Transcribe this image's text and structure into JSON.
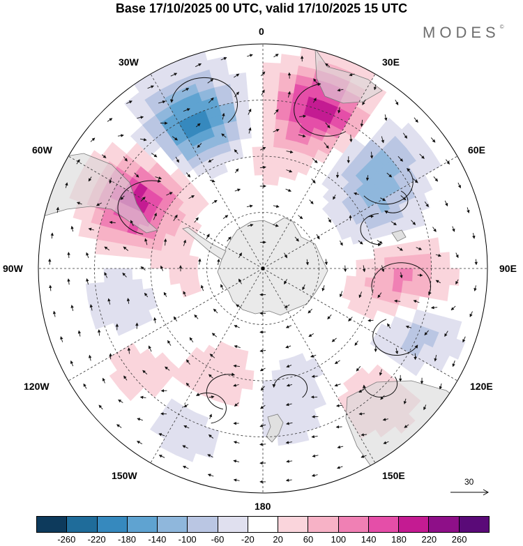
{
  "title": "Base 17/10/2025 00 UTC, valid 17/10/2025 15 UTC",
  "brand": {
    "name": "MODES",
    "mark": "©"
  },
  "longitude_labels": {
    "lon_0": "0",
    "lon_30e": "30E",
    "lon_60e": "60E",
    "lon_90e": "90E",
    "lon_120e": "120E",
    "lon_150e": "150E",
    "lon_180": "180",
    "lon_150w": "150W",
    "lon_120w": "120W",
    "lon_90w": "90W",
    "lon_60w": "60W",
    "lon_30w": "30W"
  },
  "vector_scale": {
    "label": "30"
  },
  "colorbar": {
    "colors": [
      "#0d3a5c",
      "#1f6c9a",
      "#3689be",
      "#5fa3d1",
      "#8fb7dc",
      "#bac6e3",
      "#e0e0ef",
      "#ffffff",
      "#fad5dc",
      "#f7b2c6",
      "#f080b4",
      "#e54ea8",
      "#c41b92",
      "#8e0f88",
      "#5a0a78"
    ],
    "ticks": [
      "-260",
      "-220",
      "-180",
      "-140",
      "-100",
      "-60",
      "-20",
      "20",
      "60",
      "100",
      "140",
      "180",
      "220",
      "260"
    ]
  },
  "anomaly_centers": [
    {
      "lat": -47,
      "lon": -25,
      "value": -200
    },
    {
      "lat": -45,
      "lon": 20,
      "value": 200
    },
    {
      "lat": -52,
      "lon": -62,
      "value": 200
    },
    {
      "lat": -50,
      "lon": 50,
      "value": -150
    },
    {
      "lat": -53,
      "lon": 96,
      "value": 170
    },
    {
      "lat": -48,
      "lon": 112,
      "value": -120
    },
    {
      "lat": -55,
      "lon": 73,
      "value": -80
    },
    {
      "lat": -50,
      "lon": 65,
      "value": 40
    },
    {
      "lat": -45,
      "lon": 135,
      "value": 60
    },
    {
      "lat": -55,
      "lon": 170,
      "value": -60
    },
    {
      "lat": -48,
      "lon": -155,
      "value": -80
    },
    {
      "lat": -56,
      "lon": -160,
      "value": 100
    },
    {
      "lat": -54,
      "lon": -105,
      "value": -70
    },
    {
      "lat": -62,
      "lon": -130,
      "value": -40
    },
    {
      "lat": -50,
      "lon": -130,
      "value": 60
    },
    {
      "lat": -65,
      "lon": -110,
      "value": 50
    },
    {
      "lat": -60,
      "lon": 0,
      "value": 30
    }
  ]
}
